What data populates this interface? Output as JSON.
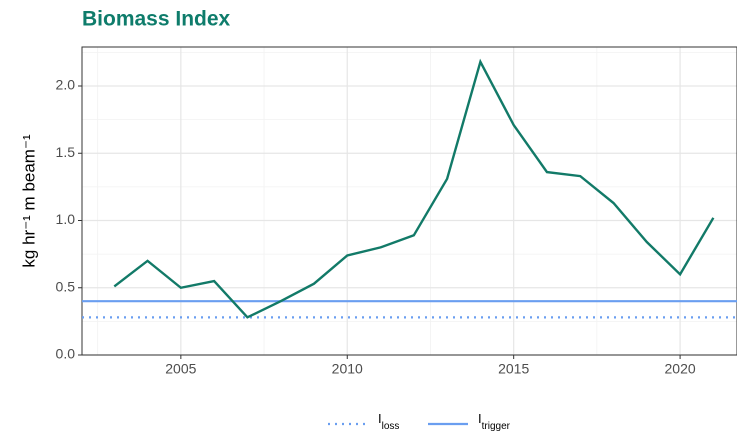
{
  "chart_data": {
    "type": "line",
    "title": "Biomass Index",
    "y_label": "kg hr⁻¹ m beam⁻¹",
    "x": [
      2003,
      2004,
      2005,
      2006,
      2007,
      2008,
      2009,
      2010,
      2011,
      2012,
      2013,
      2014,
      2015,
      2016,
      2017,
      2018,
      2019,
      2020,
      2021
    ],
    "series": [
      {
        "color": "#127a68",
        "values": [
          0.51,
          0.7,
          0.5,
          0.55,
          0.28,
          0.4,
          0.53,
          0.74,
          0.8,
          0.89,
          1.31,
          2.18,
          1.71,
          1.36,
          1.33,
          1.13,
          0.84,
          0.6,
          1.02
        ]
      }
    ],
    "reference_lines": [
      {
        "name": "I",
        "subscript": "loss",
        "value": 0.28,
        "style": "dotted",
        "color": "#6a9ef0"
      },
      {
        "name": "I",
        "subscript": "trigger",
        "value": 0.4,
        "style": "solid",
        "color": "#6a9ef0"
      }
    ],
    "xlim": [
      2002.03,
      2021.71
    ],
    "xticks": [
      2005,
      2010,
      2015,
      2020
    ],
    "x_minor_ticks": [
      2002.5,
      2007.5,
      2012.5,
      2017.5
    ],
    "ylim": [
      0,
      2.29
    ],
    "yticks": [
      {
        "value": 0,
        "label": "0.0"
      },
      0.5,
      {
        "value": 1,
        "label": "1.0"
      },
      1.5,
      {
        "value": 2,
        "label": "2.0"
      }
    ],
    "y_minor_ticks": [
      0.25,
      0.75,
      1.25,
      1.75,
      2.25
    ],
    "grid": true,
    "legend_position": "bottom"
  }
}
